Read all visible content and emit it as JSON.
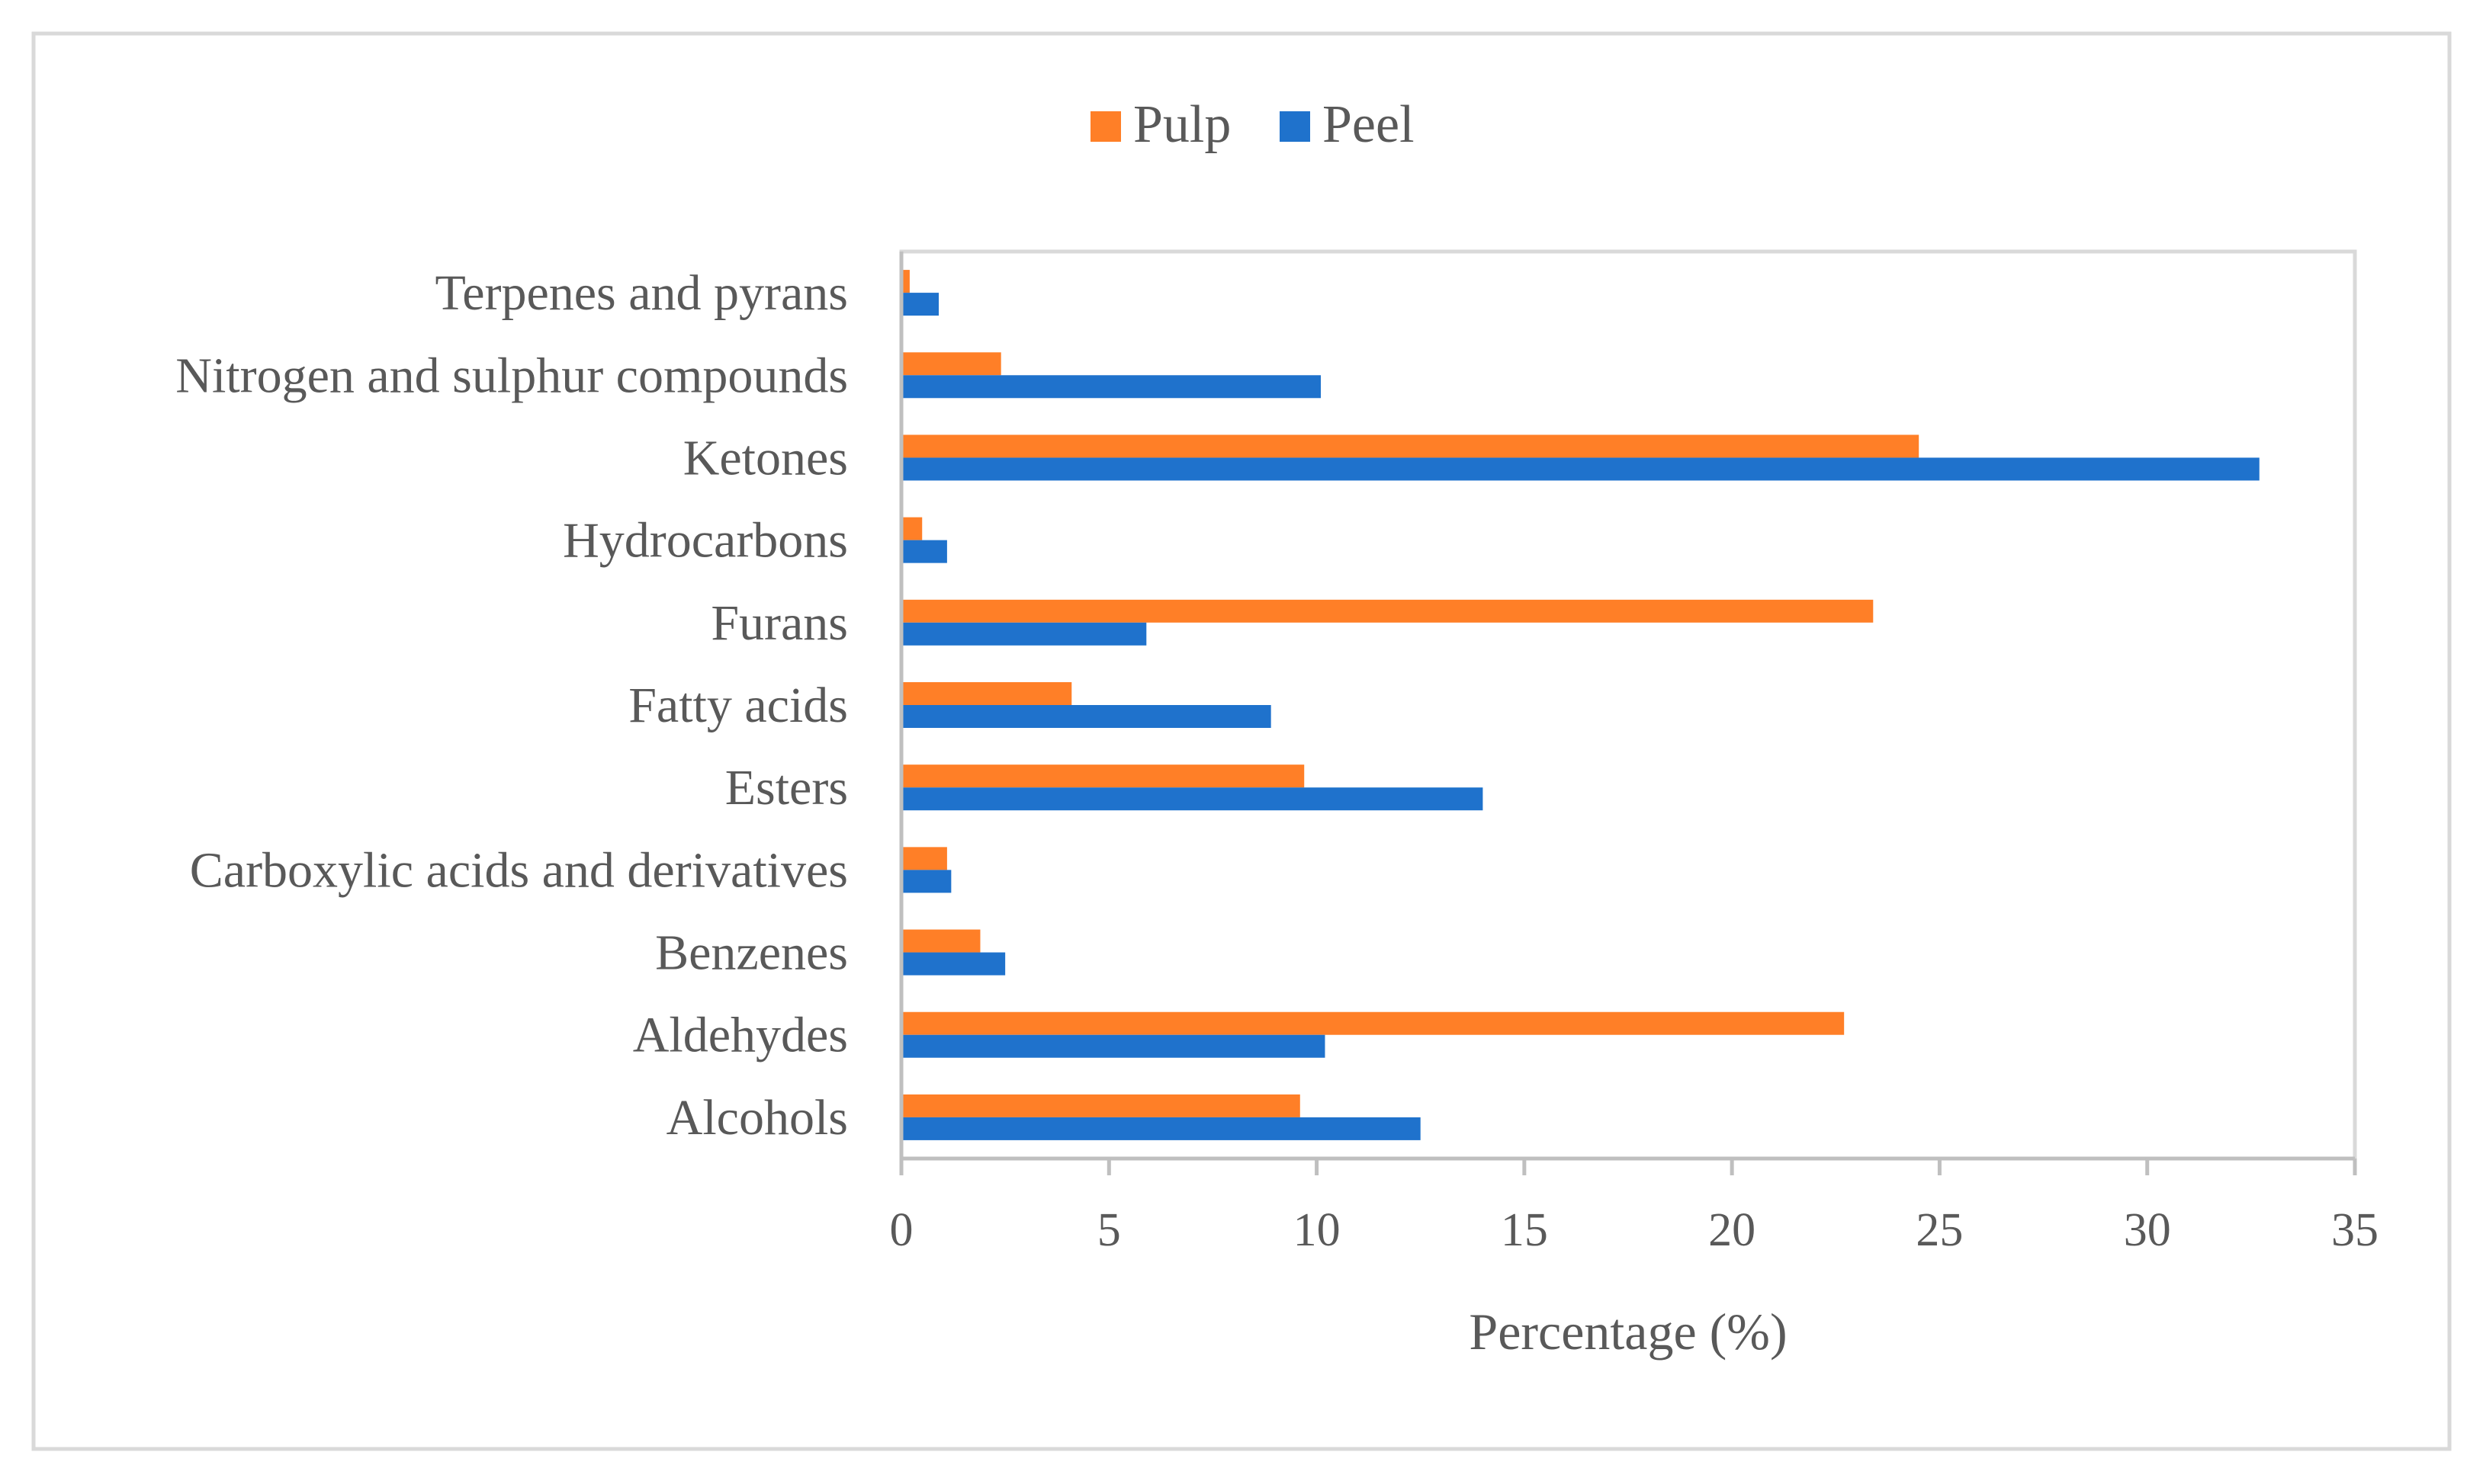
{
  "chart_data": {
    "type": "bar",
    "orientation": "horizontal",
    "title": "",
    "xlabel": "Percentage (%)",
    "ylabel": "",
    "xlim": [
      0,
      35
    ],
    "xticks": [
      0,
      5,
      10,
      15,
      20,
      25,
      30,
      35
    ],
    "xtick_labels": [
      "0",
      "5",
      "10",
      "15",
      "20",
      "25",
      "30",
      "35"
    ],
    "grid": false,
    "legend_position": "top-center",
    "categories": [
      "Alcohols",
      "Aldehydes",
      "Benzenes",
      "Carboxylic acids and derivatives",
      "Esters",
      "Fatty acids",
      "Furans",
      "Hydrocarbons",
      "Ketones",
      "Nitrogen and sulphur compounds",
      "Terpenes and pyrans"
    ],
    "series": [
      {
        "name": "Pulp",
        "color": "#FF7F27",
        "values": [
          9.6,
          22.7,
          1.9,
          1.1,
          9.7,
          4.1,
          23.4,
          0.5,
          24.5,
          2.4,
          0.2
        ]
      },
      {
        "name": "Peel",
        "color": "#1F72CC",
        "values": [
          12.5,
          10.2,
          2.5,
          1.2,
          14.0,
          8.9,
          5.9,
          1.1,
          32.7,
          10.1,
          0.9
        ]
      }
    ]
  },
  "colors": {
    "axis": "#BFBFBF",
    "text": "#595959",
    "frame": "#D9D9D9"
  }
}
